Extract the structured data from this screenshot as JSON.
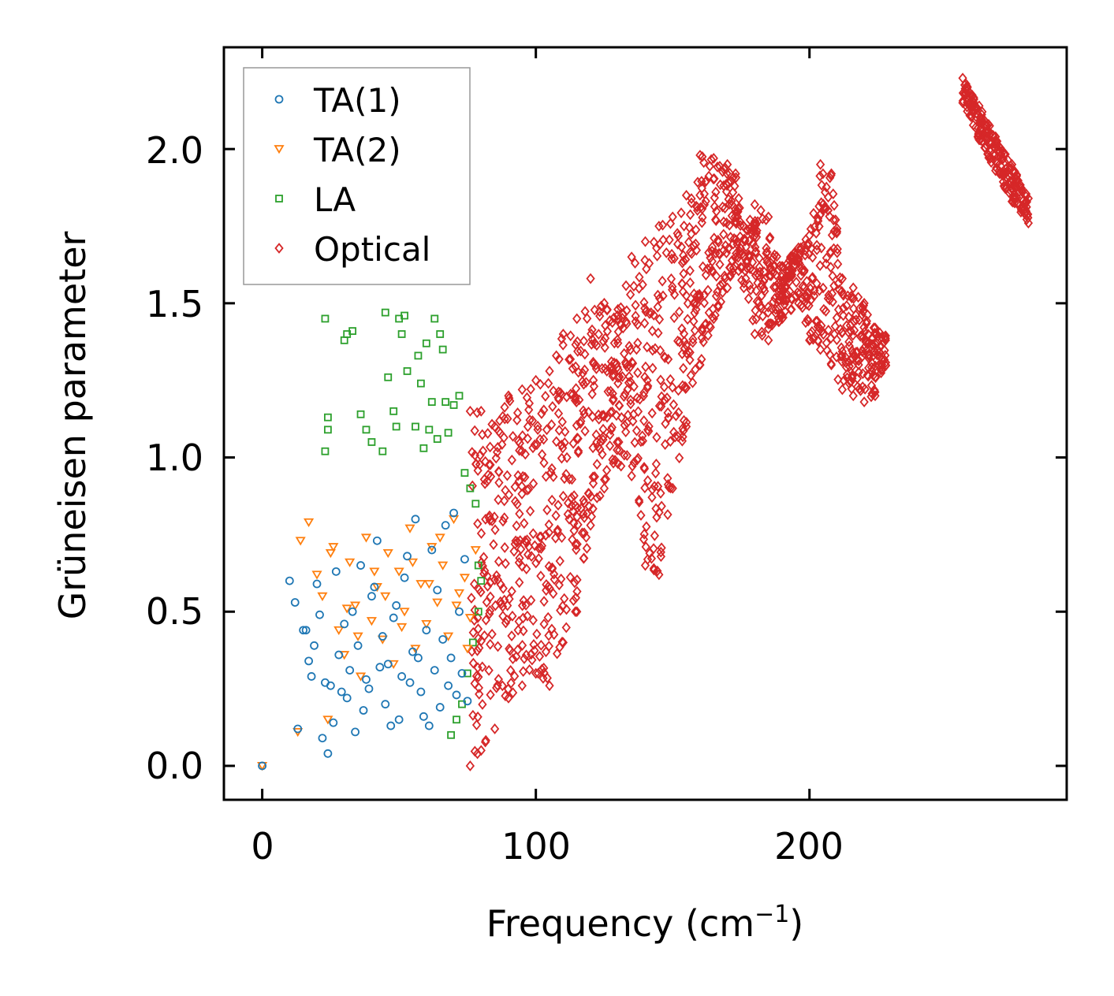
{
  "chart_data": {
    "type": "scatter",
    "title": "",
    "xlabel": "Frequency (cm",
    "xlabel_sup": "−1",
    "xlabel_close": ")",
    "ylabel": "Grüneisen parameter",
    "xlim": [
      -14,
      294
    ],
    "ylim": [
      -0.11,
      2.33
    ],
    "xticks": [
      0,
      100,
      200
    ],
    "xtick_labels": [
      "0",
      "100",
      "200"
    ],
    "yticks": [
      0.0,
      0.5,
      1.0,
      1.5,
      2.0
    ],
    "ytick_labels": [
      "0.0",
      "0.5",
      "1.0",
      "1.5",
      "2.0"
    ],
    "grid": false,
    "legend_position": "top-left",
    "series": [
      {
        "name": "TA(1)",
        "marker": "circle",
        "color": "#1f77b4",
        "x": [
          0,
          10,
          12,
          13,
          16,
          17,
          18,
          20,
          21,
          22,
          24,
          25,
          26,
          27,
          28,
          30,
          31,
          32,
          33,
          34,
          35,
          36,
          37,
          38,
          40,
          42,
          44,
          45,
          46,
          48,
          50,
          52,
          54,
          55,
          56,
          58,
          60,
          61,
          62,
          63,
          64,
          65,
          66,
          67,
          68,
          69,
          70,
          71,
          72,
          73,
          74,
          75,
          47,
          49,
          51,
          53,
          57,
          59,
          39,
          41,
          43,
          29,
          15,
          23,
          19
        ],
        "y": [
          0.0,
          0.6,
          0.53,
          0.12,
          0.44,
          0.34,
          0.29,
          0.59,
          0.49,
          0.09,
          0.04,
          0.26,
          0.14,
          0.63,
          0.36,
          0.46,
          0.22,
          0.31,
          0.5,
          0.11,
          0.39,
          0.65,
          0.18,
          0.28,
          0.55,
          0.73,
          0.42,
          0.2,
          0.33,
          0.48,
          0.15,
          0.61,
          0.27,
          0.37,
          0.8,
          0.24,
          0.44,
          0.13,
          0.7,
          0.31,
          0.57,
          0.19,
          0.41,
          0.78,
          0.26,
          0.35,
          0.82,
          0.23,
          0.5,
          0.3,
          0.67,
          0.21,
          0.13,
          0.52,
          0.29,
          0.68,
          0.35,
          0.16,
          0.25,
          0.58,
          0.32,
          0.24,
          0.44,
          0.27,
          0.39
        ]
      },
      {
        "name": "TA(2)",
        "marker": "triangle-down",
        "color": "#ff7f0e",
        "x": [
          0,
          13,
          14,
          17,
          20,
          22,
          24,
          26,
          28,
          30,
          32,
          34,
          36,
          38,
          40,
          42,
          44,
          46,
          48,
          50,
          52,
          54,
          56,
          58,
          60,
          62,
          64,
          66,
          68,
          70,
          72,
          74,
          76,
          78,
          25,
          35,
          45,
          55,
          65,
          75,
          31,
          41,
          51,
          61,
          71
        ],
        "y": [
          0.0,
          0.11,
          0.73,
          0.79,
          0.62,
          0.55,
          0.15,
          0.71,
          0.44,
          0.36,
          0.66,
          0.52,
          0.29,
          0.74,
          0.47,
          0.58,
          0.41,
          0.69,
          0.33,
          0.63,
          0.5,
          0.77,
          0.38,
          0.59,
          0.46,
          0.71,
          0.53,
          0.65,
          0.42,
          0.8,
          0.56,
          0.61,
          0.48,
          0.7,
          0.69,
          0.42,
          0.55,
          0.66,
          0.74,
          0.38,
          0.51,
          0.63,
          0.45,
          0.59,
          0.52
        ]
      },
      {
        "name": "LA",
        "marker": "square",
        "color": "#2ca02c",
        "x": [
          23,
          24,
          24,
          23,
          30,
          31,
          33,
          36,
          38,
          40,
          44,
          45,
          46,
          48,
          49,
          50,
          51,
          52,
          53,
          56,
          57,
          58,
          59,
          60,
          61,
          62,
          63,
          64,
          65,
          66,
          67,
          68,
          70,
          72,
          74,
          76,
          78,
          79,
          80,
          79,
          77,
          75,
          73,
          71,
          69
        ],
        "y": [
          1.45,
          1.13,
          1.09,
          1.02,
          1.38,
          1.4,
          1.41,
          1.14,
          1.09,
          1.05,
          1.02,
          1.47,
          1.26,
          1.15,
          1.1,
          1.45,
          1.4,
          1.46,
          1.28,
          1.1,
          1.33,
          1.24,
          1.03,
          1.37,
          1.09,
          1.18,
          1.45,
          1.06,
          1.4,
          1.35,
          1.18,
          1.08,
          1.17,
          1.2,
          0.95,
          0.9,
          0.85,
          0.65,
          0.6,
          0.5,
          0.4,
          0.3,
          0.2,
          0.15,
          0.1
        ]
      },
      {
        "name": "Optical",
        "marker": "diamond",
        "color": "#d62728",
        "bands": [
          {
            "x": 76,
            "ylo": 0.0,
            "yhi": 1.15
          },
          {
            "x": 80,
            "ylo": 0.05,
            "yhi": 1.15
          },
          {
            "x": 85,
            "ylo": 0.12,
            "yhi": 1.1
          },
          {
            "x": 90,
            "ylo": 0.22,
            "yhi": 1.2
          },
          {
            "x": 95,
            "ylo": 0.26,
            "yhi": 1.22
          },
          {
            "x": 100,
            "ylo": 0.3,
            "yhi": 1.25
          },
          {
            "x": 105,
            "ylo": 0.26,
            "yhi": 1.28
          },
          {
            "x": 110,
            "ylo": 0.4,
            "yhi": 1.4
          },
          {
            "x": 115,
            "ylo": 0.5,
            "yhi": 1.45
          },
          {
            "x": 120,
            "ylo": 0.78,
            "yhi": 1.58
          },
          {
            "x": 125,
            "ylo": 0.9,
            "yhi": 1.5
          },
          {
            "x": 130,
            "ylo": 0.98,
            "yhi": 1.48
          },
          {
            "x": 135,
            "ylo": 0.94,
            "yhi": 1.65
          },
          {
            "x": 140,
            "ylo": 0.65,
            "yhi": 1.7
          },
          {
            "x": 145,
            "ylo": 0.62,
            "yhi": 1.75
          },
          {
            "x": 150,
            "ylo": 0.9,
            "yhi": 1.78
          },
          {
            "x": 155,
            "ylo": 1.1,
            "yhi": 1.85
          },
          {
            "x": 160,
            "ylo": 1.3,
            "yhi": 1.98
          },
          {
            "x": 165,
            "ylo": 1.45,
            "yhi": 1.97
          },
          {
            "x": 170,
            "ylo": 1.55,
            "yhi": 1.95
          },
          {
            "x": 173,
            "ylo": 1.62,
            "yhi": 1.92
          },
          {
            "x": 176,
            "ylo": 1.55,
            "yhi": 1.75
          },
          {
            "x": 180,
            "ylo": 1.4,
            "yhi": 1.82
          },
          {
            "x": 185,
            "ylo": 1.38,
            "yhi": 1.78
          },
          {
            "x": 190,
            "ylo": 1.45,
            "yhi": 1.62
          },
          {
            "x": 196,
            "ylo": 1.5,
            "yhi": 1.68
          },
          {
            "x": 200,
            "ylo": 1.38,
            "yhi": 1.72
          },
          {
            "x": 204,
            "ylo": 1.35,
            "yhi": 1.95
          },
          {
            "x": 208,
            "ylo": 1.3,
            "yhi": 1.92
          },
          {
            "x": 212,
            "ylo": 1.22,
            "yhi": 1.58
          },
          {
            "x": 216,
            "ylo": 1.2,
            "yhi": 1.55
          },
          {
            "x": 220,
            "ylo": 1.18,
            "yhi": 1.5
          },
          {
            "x": 224,
            "ylo": 1.2,
            "yhi": 1.42
          },
          {
            "x": 228,
            "ylo": 1.3,
            "yhi": 1.4
          },
          {
            "x": 256,
            "ylo": 2.15,
            "yhi": 2.23
          },
          {
            "x": 262,
            "ylo": 2.03,
            "yhi": 2.14
          },
          {
            "x": 268,
            "ylo": 1.93,
            "yhi": 2.04
          },
          {
            "x": 274,
            "ylo": 1.83,
            "yhi": 1.95
          },
          {
            "x": 280,
            "ylo": 1.76,
            "yhi": 1.84
          }
        ]
      }
    ]
  }
}
